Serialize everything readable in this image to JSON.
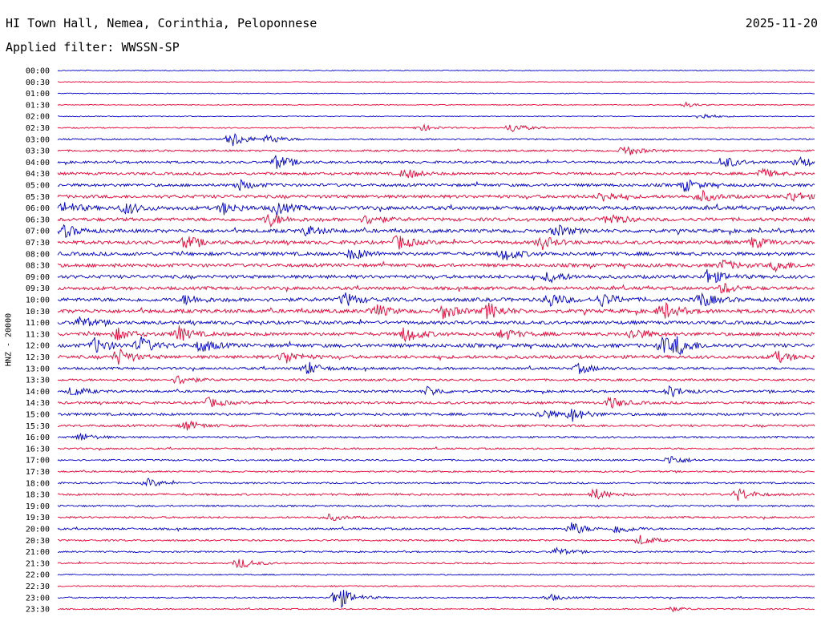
{
  "header": {
    "title": "HI Town Hall, Nemea, Corinthia, Peloponnese",
    "date": "2025-11-20",
    "filter_label": "Applied filter: WWSSN-SP"
  },
  "chart_data": {
    "type": "line",
    "ylabel": "HNZ - 20000",
    "colors": {
      "even_row": "#0000cc",
      "odd_row": "#ee0033"
    },
    "rows": [
      {
        "label": "00:00",
        "activity": 0.05,
        "events": []
      },
      {
        "label": "00:30",
        "activity": 0.05,
        "events": []
      },
      {
        "label": "01:00",
        "activity": 0.05,
        "events": []
      },
      {
        "label": "01:30",
        "activity": 0.06,
        "events": [
          {
            "t": 0.83,
            "a": 3
          }
        ]
      },
      {
        "label": "02:00",
        "activity": 0.08,
        "events": [
          {
            "t": 0.85,
            "a": 4
          }
        ]
      },
      {
        "label": "02:30",
        "activity": 0.15,
        "events": [
          {
            "t": 0.48,
            "a": 4
          },
          {
            "t": 0.6,
            "a": 6
          }
        ]
      },
      {
        "label": "03:00",
        "activity": 0.3,
        "events": [
          {
            "t": 0.23,
            "a": 10
          },
          {
            "t": 0.28,
            "a": 5
          }
        ]
      },
      {
        "label": "03:30",
        "activity": 0.4,
        "events": [
          {
            "t": 0.75,
            "a": 7
          }
        ]
      },
      {
        "label": "04:00",
        "activity": 0.55,
        "events": [
          {
            "t": 0.29,
            "a": 9
          },
          {
            "t": 0.88,
            "a": 8
          },
          {
            "t": 0.98,
            "a": 7
          }
        ]
      },
      {
        "label": "04:30",
        "activity": 0.65,
        "events": [
          {
            "t": 0.46,
            "a": 6
          },
          {
            "t": 0.93,
            "a": 6
          }
        ]
      },
      {
        "label": "05:00",
        "activity": 0.75,
        "events": [
          {
            "t": 0.24,
            "a": 6
          },
          {
            "t": 0.83,
            "a": 7
          }
        ]
      },
      {
        "label": "05:30",
        "activity": 0.85,
        "events": [
          {
            "t": 0.72,
            "a": 6
          },
          {
            "t": 0.85,
            "a": 7
          },
          {
            "t": 0.97,
            "a": 6
          }
        ]
      },
      {
        "label": "06:00",
        "activity": 1.0,
        "events": [
          {
            "t": 0.01,
            "a": 7
          },
          {
            "t": 0.09,
            "a": 7
          },
          {
            "t": 0.22,
            "a": 7
          },
          {
            "t": 0.29,
            "a": 8
          }
        ]
      },
      {
        "label": "06:30",
        "activity": 0.9,
        "events": [
          {
            "t": 0.28,
            "a": 8
          },
          {
            "t": 0.41,
            "a": 6
          },
          {
            "t": 0.73,
            "a": 7
          }
        ]
      },
      {
        "label": "07:00",
        "activity": 0.95,
        "events": [
          {
            "t": 0.01,
            "a": 7
          },
          {
            "t": 0.33,
            "a": 6
          },
          {
            "t": 0.66,
            "a": 7
          }
        ]
      },
      {
        "label": "07:30",
        "activity": 0.9,
        "events": [
          {
            "t": 0.17,
            "a": 8
          },
          {
            "t": 0.45,
            "a": 9
          },
          {
            "t": 0.64,
            "a": 8
          },
          {
            "t": 0.92,
            "a": 7
          }
        ]
      },
      {
        "label": "08:00",
        "activity": 0.95,
        "events": [
          {
            "t": 0.39,
            "a": 7
          },
          {
            "t": 0.59,
            "a": 8
          }
        ]
      },
      {
        "label": "08:30",
        "activity": 0.9,
        "events": [
          {
            "t": 0.88,
            "a": 6
          },
          {
            "t": 0.95,
            "a": 7
          }
        ]
      },
      {
        "label": "09:00",
        "activity": 0.9,
        "events": [
          {
            "t": 0.65,
            "a": 7
          },
          {
            "t": 0.86,
            "a": 10
          }
        ]
      },
      {
        "label": "09:30",
        "activity": 0.85,
        "events": [
          {
            "t": 0.88,
            "a": 6
          }
        ]
      },
      {
        "label": "10:00",
        "activity": 1.0,
        "events": [
          {
            "t": 0.17,
            "a": 6
          },
          {
            "t": 0.38,
            "a": 8
          },
          {
            "t": 0.65,
            "a": 9
          },
          {
            "t": 0.72,
            "a": 8
          },
          {
            "t": 0.85,
            "a": 9
          }
        ]
      },
      {
        "label": "10:30",
        "activity": 1.0,
        "events": [
          {
            "t": 0.42,
            "a": 8
          },
          {
            "t": 0.51,
            "a": 9
          },
          {
            "t": 0.57,
            "a": 10
          },
          {
            "t": 0.8,
            "a": 10
          }
        ]
      },
      {
        "label": "11:00",
        "activity": 0.9,
        "events": [
          {
            "t": 0.03,
            "a": 7
          }
        ]
      },
      {
        "label": "11:30",
        "activity": 0.9,
        "events": [
          {
            "t": 0.08,
            "a": 7
          },
          {
            "t": 0.16,
            "a": 9
          },
          {
            "t": 0.46,
            "a": 10
          },
          {
            "t": 0.59,
            "a": 7
          },
          {
            "t": 0.76,
            "a": 7
          }
        ]
      },
      {
        "label": "12:00",
        "activity": 1.0,
        "events": [
          {
            "t": 0.05,
            "a": 9
          },
          {
            "t": 0.11,
            "a": 10
          },
          {
            "t": 0.19,
            "a": 8
          },
          {
            "t": 0.8,
            "a": 10
          },
          {
            "t": 0.82,
            "a": 9
          }
        ]
      },
      {
        "label": "12:30",
        "activity": 0.85,
        "events": [
          {
            "t": 0.08,
            "a": 10
          },
          {
            "t": 0.3,
            "a": 8
          },
          {
            "t": 0.95,
            "a": 7
          }
        ]
      },
      {
        "label": "13:00",
        "activity": 0.6,
        "events": [
          {
            "t": 0.33,
            "a": 8
          },
          {
            "t": 0.69,
            "a": 6
          }
        ]
      },
      {
        "label": "13:30",
        "activity": 0.5,
        "events": [
          {
            "t": 0.16,
            "a": 6
          }
        ]
      },
      {
        "label": "14:00",
        "activity": 0.55,
        "events": [
          {
            "t": 0.02,
            "a": 6
          },
          {
            "t": 0.49,
            "a": 6
          },
          {
            "t": 0.81,
            "a": 7
          }
        ]
      },
      {
        "label": "14:30",
        "activity": 0.6,
        "events": [
          {
            "t": 0.2,
            "a": 6
          },
          {
            "t": 0.73,
            "a": 7
          }
        ]
      },
      {
        "label": "15:00",
        "activity": 0.65,
        "events": [
          {
            "t": 0.64,
            "a": 6
          },
          {
            "t": 0.68,
            "a": 8
          }
        ]
      },
      {
        "label": "15:30",
        "activity": 0.55,
        "events": [
          {
            "t": 0.17,
            "a": 6
          }
        ]
      },
      {
        "label": "16:00",
        "activity": 0.4,
        "events": [
          {
            "t": 0.03,
            "a": 5
          }
        ]
      },
      {
        "label": "16:30",
        "activity": 0.35,
        "events": []
      },
      {
        "label": "17:00",
        "activity": 0.35,
        "events": [
          {
            "t": 0.81,
            "a": 6
          }
        ]
      },
      {
        "label": "17:30",
        "activity": 0.3,
        "events": []
      },
      {
        "label": "18:00",
        "activity": 0.35,
        "events": [
          {
            "t": 0.12,
            "a": 5
          }
        ]
      },
      {
        "label": "18:30",
        "activity": 0.45,
        "events": [
          {
            "t": 0.71,
            "a": 7
          },
          {
            "t": 0.9,
            "a": 8
          }
        ]
      },
      {
        "label": "19:00",
        "activity": 0.35,
        "events": []
      },
      {
        "label": "19:30",
        "activity": 0.4,
        "events": [
          {
            "t": 0.36,
            "a": 4
          }
        ]
      },
      {
        "label": "20:00",
        "activity": 0.45,
        "events": [
          {
            "t": 0.68,
            "a": 8
          },
          {
            "t": 0.74,
            "a": 6
          }
        ]
      },
      {
        "label": "20:30",
        "activity": 0.35,
        "events": [
          {
            "t": 0.77,
            "a": 6
          }
        ]
      },
      {
        "label": "21:00",
        "activity": 0.3,
        "events": [
          {
            "t": 0.66,
            "a": 5
          }
        ]
      },
      {
        "label": "21:30",
        "activity": 0.3,
        "events": [
          {
            "t": 0.24,
            "a": 7
          }
        ]
      },
      {
        "label": "22:00",
        "activity": 0.2,
        "events": []
      },
      {
        "label": "22:30",
        "activity": 0.2,
        "events": []
      },
      {
        "label": "23:00",
        "activity": 0.25,
        "events": [
          {
            "t": 0.37,
            "a": 16
          },
          {
            "t": 0.65,
            "a": 4
          }
        ]
      },
      {
        "label": "23:30",
        "activity": 0.2,
        "events": [
          {
            "t": 0.81,
            "a": 3
          }
        ]
      }
    ]
  }
}
